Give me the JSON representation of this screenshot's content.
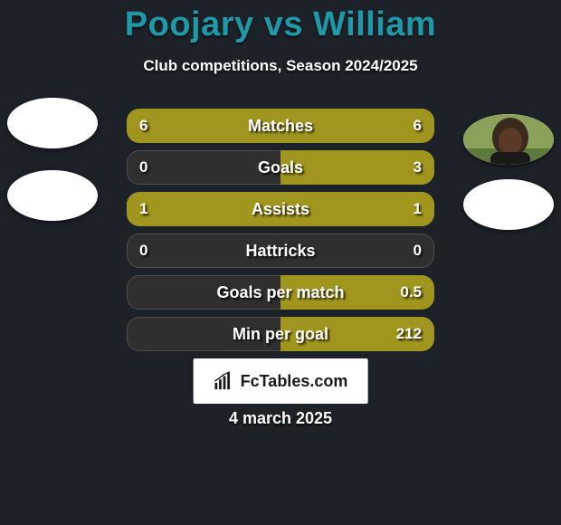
{
  "background_color": "#1c2228",
  "title": "Poojary vs William",
  "title_color": "#1f98a8",
  "subtitle": "Club competitions, Season 2024/2025",
  "brand_text": "FcTables.com",
  "date_text": "4 march 2025",
  "player_left_colors": {
    "fill_color": "#a0951e",
    "base_color": "#3a3f1a"
  },
  "player_right_colors": {
    "fill_color": "#3a3f1a",
    "base_color": "#a0951e"
  },
  "bar_track_bg": "#2f2f2f",
  "font_family": "Arial, Helvetica, sans-serif",
  "title_fontsize": 38,
  "subtitle_fontsize": 17,
  "bar_label_fontsize": 18,
  "bar_value_fontsize": 17,
  "bars": [
    {
      "label": "Matches",
      "left_val": "6",
      "right_val": "6",
      "left_pct": 50,
      "right_pct": 50
    },
    {
      "label": "Goals",
      "left_val": "0",
      "right_val": "3",
      "left_pct": 0,
      "right_pct": 50
    },
    {
      "label": "Assists",
      "left_val": "1",
      "right_val": "1",
      "left_pct": 50,
      "right_pct": 50
    },
    {
      "label": "Hattricks",
      "left_val": "0",
      "right_val": "0",
      "left_pct": 0,
      "right_pct": 0
    },
    {
      "label": "Goals per match",
      "left_val": "",
      "right_val": "0.5",
      "left_pct": 0,
      "right_pct": 50
    },
    {
      "label": "Min per goal",
      "left_val": "",
      "right_val": "212",
      "left_pct": 0,
      "right_pct": 50
    }
  ]
}
